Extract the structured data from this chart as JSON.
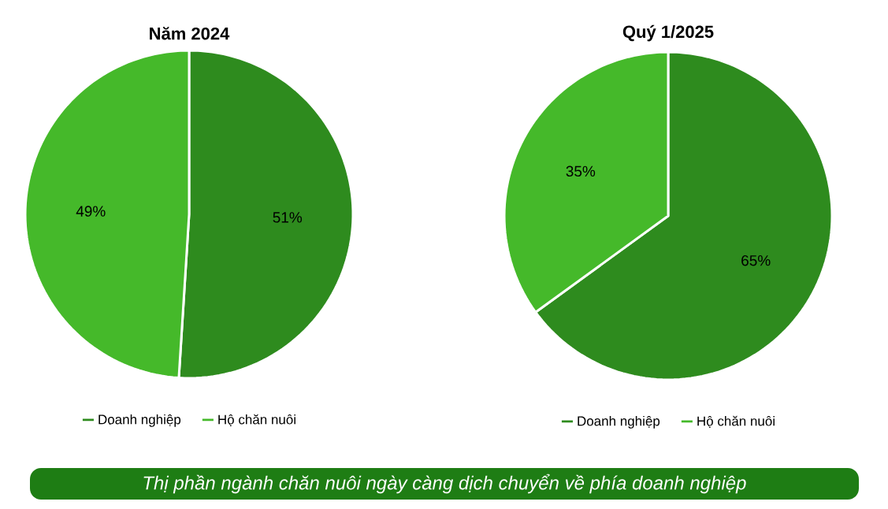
{
  "chart_data": [
    {
      "type": "pie",
      "title": "Năm 2024",
      "categories": [
        "Doanh nghiệp",
        "Hộ chăn nuôi"
      ],
      "values": [
        51,
        49
      ],
      "value_labels": [
        "51%",
        "49%"
      ],
      "colors": [
        "#2e8b1e",
        "#45b92a"
      ],
      "legend": "bottom",
      "annotations": [
        "Thị phần ngành chăn nuôi ngày càng dịch chuyển về phía doanh nghiệp"
      ]
    },
    {
      "type": "pie",
      "title": "Quý 1/2025",
      "categories": [
        "Doanh nghiệp",
        "Hộ chăn nuôi"
      ],
      "values": [
        65,
        35
      ],
      "value_labels": [
        "65%",
        "35%"
      ],
      "colors": [
        "#2e8b1e",
        "#45b92a"
      ],
      "legend": "bottom"
    }
  ]
}
